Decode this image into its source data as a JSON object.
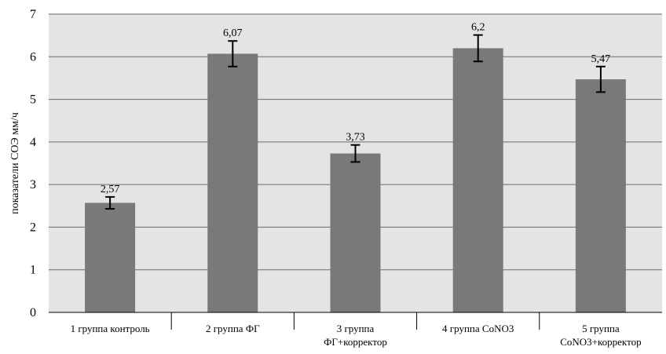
{
  "chart_data": {
    "type": "bar",
    "categories": [
      [
        "1 группа контроль"
      ],
      [
        "2 группа ФГ"
      ],
      [
        "3 группа",
        "ФГ+корректор"
      ],
      [
        "4 группа CoNO3"
      ],
      [
        "5 группа",
        "CoNO3+корректор"
      ]
    ],
    "values": [
      2.57,
      6.07,
      3.73,
      6.2,
      5.47
    ],
    "value_labels": [
      "2,57",
      "6,07",
      "3,73",
      "6,2",
      "5,47"
    ],
    "error": [
      0.14,
      0.3,
      0.2,
      0.31,
      0.3
    ],
    "ylabel": "показатели СОЭ мм/ч",
    "ylim": [
      0,
      7
    ],
    "yticks": [
      "0",
      "1",
      "2",
      "3",
      "4",
      "5",
      "6",
      "7"
    ],
    "grid": true,
    "colors": {
      "bar": "#797979",
      "plot_bg": "#e4e4e4",
      "grid": "#6a6a6a",
      "error": "#000000"
    }
  }
}
